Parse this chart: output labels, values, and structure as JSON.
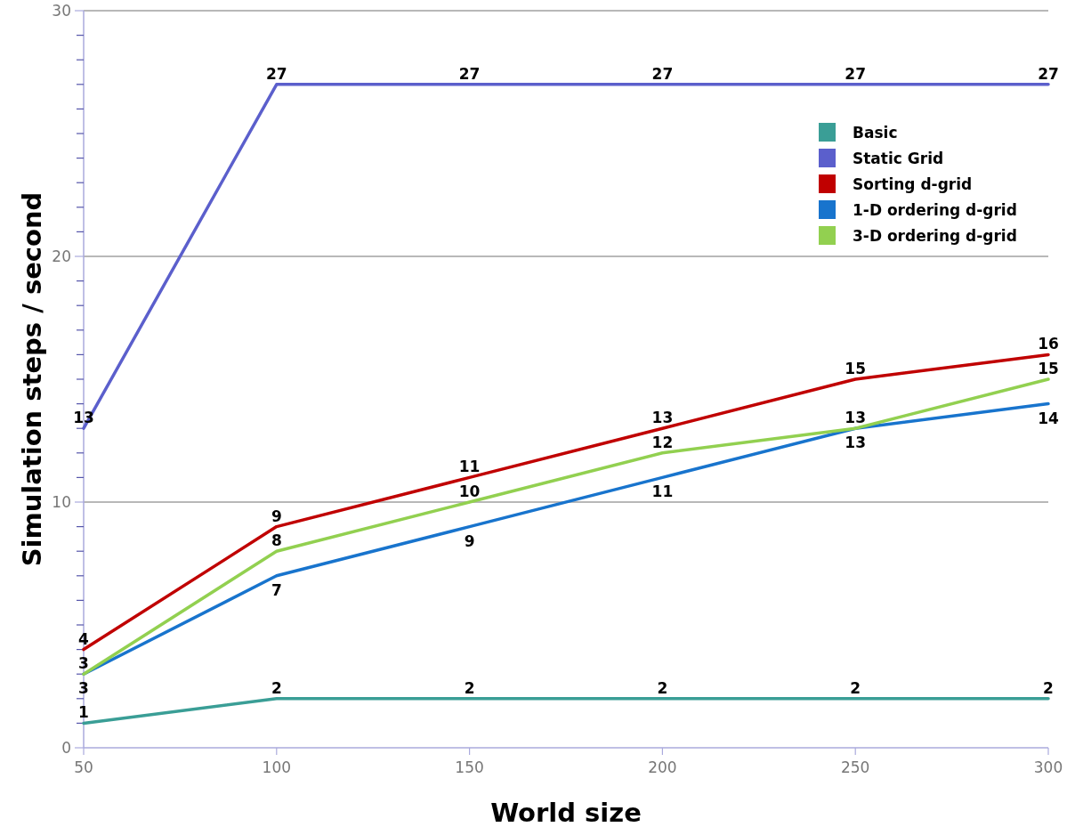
{
  "chart_data": {
    "type": "line",
    "xlabel": "World size",
    "ylabel": "Simulation steps / second",
    "x": [
      50,
      100,
      150,
      200,
      250,
      300
    ],
    "series": [
      {
        "name": "Basic",
        "color": "#3a9e96",
        "values": [
          1,
          2,
          2,
          2,
          2,
          2
        ]
      },
      {
        "name": "Static Grid",
        "color": "#5b5fcc",
        "values": [
          13,
          27,
          27,
          27,
          27,
          27
        ]
      },
      {
        "name": "Sorting d-grid",
        "color": "#c00000",
        "values": [
          4,
          9,
          11,
          13,
          15,
          16
        ]
      },
      {
        "name": "1-D ordering d-grid",
        "color": "#1874cd",
        "values": [
          3,
          7,
          9,
          11,
          13,
          14
        ]
      },
      {
        "name": "3-D ordering d-grid",
        "color": "#92d050",
        "values": [
          3,
          8,
          10,
          12,
          13,
          15
        ]
      }
    ],
    "xlim": [
      50,
      300
    ],
    "xticks": [
      50,
      100,
      150,
      200,
      250,
      300
    ],
    "ylim": [
      0,
      30
    ],
    "yticks": [
      0,
      {
        "value": 1,
        "label": null
      },
      {
        "value": 2,
        "label": null
      },
      {
        "value": 3,
        "label": null
      },
      {
        "value": 4,
        "label": null
      },
      {
        "value": 5,
        "label": null
      },
      {
        "value": 6,
        "label": null
      },
      {
        "value": 7,
        "label": null
      },
      {
        "value": 8,
        "label": null
      },
      {
        "value": 9,
        "label": null
      },
      10,
      {
        "value": 11,
        "label": null
      },
      {
        "value": 12,
        "label": null
      },
      {
        "value": 13,
        "label": null
      },
      {
        "value": 14,
        "label": null
      },
      {
        "value": 15,
        "label": null
      },
      {
        "value": 16,
        "label": null
      },
      {
        "value": 17,
        "label": null
      },
      {
        "value": 18,
        "label": null
      },
      {
        "value": 19,
        "label": null
      },
      20,
      {
        "value": 21,
        "label": null
      },
      {
        "value": 22,
        "label": null
      },
      {
        "value": 23,
        "label": null
      },
      {
        "value": 24,
        "label": null
      },
      {
        "value": 25,
        "label": null
      },
      {
        "value": 26,
        "label": null
      },
      {
        "value": 27,
        "label": null
      },
      {
        "value": 28,
        "label": null
      },
      {
        "value": 29,
        "label": null
      },
      30
    ],
    "grid": "y",
    "legend": "top right",
    "data_labels": true,
    "marker": "none",
    "line_style": "solid"
  }
}
